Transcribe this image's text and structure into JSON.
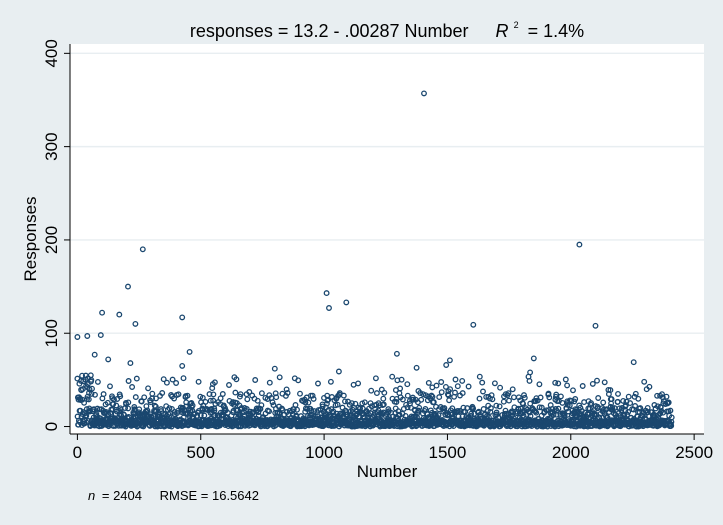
{
  "chart_data": {
    "type": "scatter",
    "title": {
      "prefix": "responses = 13.2 - .00287 Number",
      "r2_symbol": "R",
      "r2_superscript": "2",
      "r2_value": "= 1.4%"
    },
    "xlabel": "Number",
    "ylabel": "Responses",
    "xlim": [
      -30,
      2540
    ],
    "ylim": [
      -8,
      410
    ],
    "xticks": [
      0,
      500,
      1000,
      1500,
      2000,
      2500
    ],
    "yticks": [
      0,
      100,
      200,
      300,
      400
    ],
    "grid": true,
    "marker": "hollow-circle",
    "marker_color": "#1a476f",
    "background_outer": "#e8eef1",
    "background_plot": "#ffffff",
    "grid_color": "#e8eef1",
    "regression": {
      "intercept": 13.2,
      "slope": -0.00287
    },
    "n_points": 2404,
    "outliers": [
      {
        "x": 1405,
        "y": 357
      },
      {
        "x": 2035,
        "y": 195
      },
      {
        "x": 265,
        "y": 190
      },
      {
        "x": 205,
        "y": 150
      },
      {
        "x": 1010,
        "y": 143
      },
      {
        "x": 1090,
        "y": 133
      },
      {
        "x": 1020,
        "y": 127
      },
      {
        "x": 100,
        "y": 122
      },
      {
        "x": 170,
        "y": 120
      },
      {
        "x": 425,
        "y": 117
      },
      {
        "x": 235,
        "y": 110
      },
      {
        "x": 1605,
        "y": 109
      },
      {
        "x": 2100,
        "y": 108
      },
      {
        "x": 95,
        "y": 98
      },
      {
        "x": 40,
        "y": 97
      },
      {
        "x": 0,
        "y": 96
      },
      {
        "x": 455,
        "y": 80
      },
      {
        "x": 1295,
        "y": 78
      },
      {
        "x": 70,
        "y": 77
      },
      {
        "x": 1850,
        "y": 73
      },
      {
        "x": 125,
        "y": 72
      },
      {
        "x": 1510,
        "y": 71
      },
      {
        "x": 2255,
        "y": 69
      },
      {
        "x": 215,
        "y": 68
      },
      {
        "x": 1495,
        "y": 66
      },
      {
        "x": 425,
        "y": 65
      },
      {
        "x": 1375,
        "y": 63
      },
      {
        "x": 1060,
        "y": 59
      },
      {
        "x": 1835,
        "y": 58
      },
      {
        "x": 800,
        "y": 62
      }
    ]
  },
  "footnote": {
    "n_label": "n",
    "n_value": "= 2404",
    "rmse": "RMSE =  16.5642"
  }
}
